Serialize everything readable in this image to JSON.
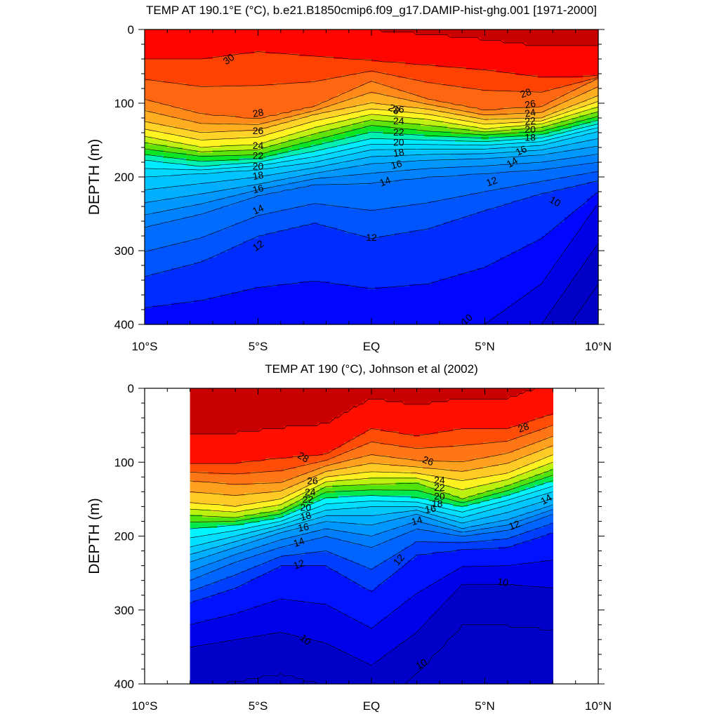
{
  "chart_data": [
    {
      "type": "contour",
      "title": "TEMP AT 190.1°E (°C), b.e21.B1850cmip6.f09_g17.DAMIP-hist-ghg.001 [1971-2000]",
      "ylabel": "DEPTH (m)",
      "xlabel": "",
      "x_ticks": [
        -10,
        -5,
        0,
        5,
        10
      ],
      "x_tick_labels": [
        "10°S",
        "5°S",
        "EQ",
        "5°N",
        "10°N"
      ],
      "y_ticks": [
        0,
        100,
        200,
        300,
        400
      ],
      "y_tick_labels": [
        "0",
        "100",
        "200",
        "300",
        "400"
      ],
      "xlim": [
        -10,
        10
      ],
      "ylim": [
        400,
        0
      ],
      "data_xlim": [
        -10,
        10
      ],
      "contour_interval": 1,
      "levels_range": [
        8,
        31
      ],
      "grid": false,
      "colorbar": false,
      "isotherm_depths": {
        "x": [
          -10,
          -7.5,
          -5,
          -2.5,
          0,
          2.5,
          5,
          7.5,
          10
        ],
        "levels": {
          "30": [
            null,
            40,
            30,
            null,
            null,
            null,
            55,
            65,
            null
          ],
          "28": [
            95,
            115,
            122,
            105,
            70,
            95,
            110,
            105,
            65
          ],
          "26": [
            125,
            140,
            136,
            115,
            100,
            108,
            122,
            120,
            90
          ],
          "24": [
            145,
            160,
            156,
            133,
            115,
            122,
            135,
            128,
            105
          ],
          "22": [
            162,
            172,
            170,
            150,
            130,
            138,
            143,
            138,
            118
          ],
          "20": [
            177,
            186,
            180,
            165,
            148,
            150,
            152,
            147,
            128
          ],
          "18": [
            200,
            195,
            190,
            180,
            163,
            162,
            162,
            157,
            138
          ],
          "16": [
            235,
            223,
            210,
            195,
            182,
            177,
            175,
            170,
            158
          ],
          "14": [
            268,
            250,
            225,
            210,
            208,
            200,
            195,
            190,
            180
          ],
          "12": [
            335,
            315,
            280,
            262,
            283,
            270,
            245,
            222,
            205
          ],
          "10": [
            null,
            null,
            null,
            null,
            null,
            420,
            400,
            345,
            235
          ]
        }
      }
    },
    {
      "type": "contour",
      "title": "TEMP AT 190 (°C), Johnson et al (2002)",
      "ylabel": "DEPTH (m)",
      "xlabel": "",
      "x_ticks": [
        -10,
        -5,
        0,
        5,
        10
      ],
      "x_tick_labels": [
        "10°S",
        "5°S",
        "EQ",
        "5°N",
        "10°N"
      ],
      "y_ticks": [
        0,
        100,
        200,
        300,
        400
      ],
      "y_tick_labels": [
        "0",
        "100",
        "200",
        "300",
        "400"
      ],
      "xlim": [
        -10,
        10
      ],
      "ylim": [
        400,
        0
      ],
      "data_xlim": [
        -8,
        8
      ],
      "contour_interval": 1,
      "levels_range": [
        9,
        29
      ],
      "grid": false,
      "colorbar": false,
      "isotherm_depths": {
        "x": [
          -8,
          -6,
          -4,
          -2,
          0,
          2,
          4,
          6,
          8
        ],
        "levels": {
          "28": [
            102,
            102,
            95,
            90,
            55,
            65,
            55,
            55,
            35
          ],
          "26": [
            125,
            130,
            128,
            105,
            90,
            98,
            100,
            88,
            65
          ],
          "24": [
            155,
            160,
            150,
            120,
            113,
            115,
            125,
            115,
            90
          ],
          "22": [
            172,
            175,
            165,
            133,
            130,
            128,
            150,
            132,
            110
          ],
          "20": [
            190,
            185,
            175,
            148,
            145,
            148,
            160,
            145,
            125
          ],
          "18": [
            215,
            200,
            185,
            165,
            160,
            160,
            175,
            158,
            140
          ],
          "16": [
            235,
            215,
            195,
            180,
            185,
            170,
            190,
            178,
            158
          ],
          "14": [
            260,
            235,
            215,
            200,
            215,
            190,
            200,
            192,
            170
          ],
          "12": [
            290,
            270,
            240,
            240,
            275,
            225,
            218,
            215,
            195
          ],
          "10": [
            350,
            340,
            330,
            345,
            375,
            330,
            265,
            265,
            270
          ]
        }
      }
    }
  ],
  "colors": {
    "warm_deep": "#cf0000",
    "warm": "#ff0000",
    "mid_orange": "#ff8a1e",
    "yellow": "#ffff20",
    "green": "#00c800",
    "cyan": "#00e8ff",
    "blue_mid": "#0096ff",
    "blue_deep": "#0000ff"
  }
}
